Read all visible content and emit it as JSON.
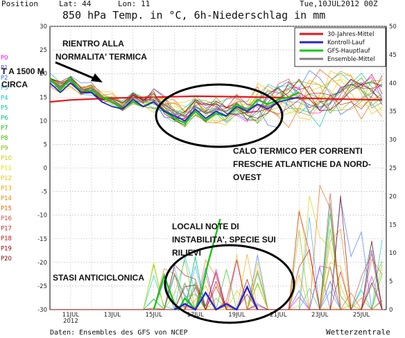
{
  "header": {
    "position_label": "Position",
    "lat_label": "Lat: 44",
    "lon_label": "Lon: 11",
    "date_label": "Tue,10JUL2012 00Z"
  },
  "chart_data": {
    "type": "line",
    "title": "850 hPa Temp. in °C, 6h-Niederschlag in mm",
    "left_axis_ticks": [
      "30",
      "25",
      "20",
      "15",
      "10",
      "5",
      "0",
      "-5",
      "-10",
      "-15",
      "-20",
      "-25",
      "-30"
    ],
    "left_axis_range": [
      -30,
      30
    ],
    "right_axis_ticks": [
      "50",
      "45",
      "40",
      "35",
      "30",
      "25",
      "20",
      "15",
      "10",
      "5",
      "0"
    ],
    "right_axis_range": [
      0,
      50
    ],
    "x_tick_labels": [
      "11JUL\n2012",
      "13JUL",
      "15JUL",
      "17JUL",
      "19JUL",
      "21JUL",
      "23JUL",
      "25JUL"
    ],
    "grid": true,
    "legend_position": "top-right",
    "legend": [
      {
        "name": "30-Jahres-Mittel",
        "color": "#e8141a"
      },
      {
        "name": "Kontroll-Lauf",
        "color": "#2323d6"
      },
      {
        "name": "GFS-Hauptlauf",
        "color": "#16c616"
      },
      {
        "name": "Ensemble-Mittel",
        "color": "#7f7f7f"
      }
    ],
    "member_labels": [
      "P0",
      "P1",
      "P2",
      "P3",
      "P4",
      "P5",
      "P6",
      "P7",
      "P8",
      "P9",
      "P10",
      "P11",
      "P12",
      "P13",
      "P14",
      "P15",
      "P16",
      "P17",
      "P18",
      "P19",
      "P20"
    ],
    "member_colors": [
      "#ff00ff",
      "#4b4bff",
      "#3b6dff",
      "#2aa5ff",
      "#00c8c8",
      "#00c8a0",
      "#00c070",
      "#10c010",
      "#40c000",
      "#80c000",
      "#c8d200",
      "#e8e000",
      "#f0c000",
      "#f0a000",
      "#f08000",
      "#f06000",
      "#e04040",
      "#d02020",
      "#c01010",
      "#a00000",
      "#800000"
    ],
    "series": [
      {
        "name": "30-Jahres-Mittel",
        "x": [
          10,
          11,
          13,
          15,
          17,
          19,
          21,
          23,
          25,
          26
        ],
        "y": [
          14,
          14.4,
          14.8,
          15,
          15.2,
          15.1,
          14.9,
          14.7,
          14.5,
          14.4
        ]
      },
      {
        "name": "Ensemble-Mittel",
        "x": [
          10,
          10.5,
          11,
          11.5,
          12,
          12.5,
          13,
          13.5,
          14,
          14.5,
          15,
          15.5,
          16,
          16.5,
          17,
          17.5,
          18,
          18.5,
          19,
          19.5,
          20,
          20.5,
          21,
          21.5,
          22
        ],
        "y": [
          18.5,
          17,
          18.5,
          16.5,
          17,
          15,
          14.5,
          13,
          15,
          14,
          15,
          13.5,
          12,
          11,
          13,
          11.5,
          12.5,
          12,
          13.5,
          12.5,
          13.5,
          13,
          14,
          14.5,
          15
        ]
      },
      {
        "name": "GFS-Hauptlauf",
        "x": [
          10,
          10.5,
          11,
          11.5,
          12,
          12.5,
          13,
          13.5,
          14,
          14.5,
          15,
          15.5,
          16,
          16.5,
          17,
          17.5,
          18,
          18.5,
          19,
          19.5,
          20,
          20.5,
          21,
          21.5,
          22
        ],
        "y": [
          19,
          16.5,
          19,
          16,
          16.5,
          15,
          14,
          12.5,
          14,
          13,
          14,
          12,
          10.5,
          9.5,
          12,
          10,
          11.5,
          11,
          13.5,
          12,
          14.5,
          13.5,
          14.5,
          15,
          16
        ]
      },
      {
        "name": "Kontroll-Lauf",
        "x": [
          10,
          10.5,
          11,
          11.5,
          12,
          12.5,
          13,
          13.5,
          14,
          14.5,
          15,
          15.5,
          16,
          16.5,
          17,
          17.5,
          18,
          18.5,
          19,
          19.5,
          20,
          20.5,
          21,
          21.5,
          22
        ],
        "y": [
          18,
          16,
          18,
          16,
          16,
          14,
          13,
          12.5,
          14.5,
          13,
          14,
          12,
          11,
          10,
          12.5,
          10.5,
          12,
          11,
          13,
          12,
          13.5,
          12.5,
          14,
          14.5,
          15
        ]
      }
    ],
    "precip_series": [
      {
        "name": "GFS-Hauptlauf",
        "x": [
          15,
          15.5,
          15.8,
          16,
          16.2,
          16.5,
          17,
          17.3,
          17.6,
          17.9,
          18.2
        ],
        "y": [
          0,
          6,
          3,
          1,
          0,
          2,
          0,
          3,
          8,
          12,
          16
        ]
      },
      {
        "name": "Kontroll-Lauf",
        "x": [
          16,
          16.5,
          17,
          17.5,
          18,
          18.5,
          19,
          19.5,
          20
        ],
        "y": [
          0,
          1,
          0,
          3,
          0,
          1,
          0,
          4,
          0
        ]
      }
    ]
  },
  "annotations": {
    "rientro": "RIENTRO ALLA\nNORMALITA' TERMICA",
    "quota": "T A 1500 M\nCIRCA",
    "calo": "CALO TERMICO PER CORRENTI\nFRESCHE ATLANTICHE DA NORD-\nOVEST",
    "locali": "LOCALI NOTE DI\nINSTABILITA', SPECIE SUI\nRILIEVI",
    "stasi": "STASI ANTICICLONICA"
  },
  "footer": {
    "source": "Daten: Ensembles des GFS von NCEP",
    "brand": "Wetterzentrale"
  }
}
